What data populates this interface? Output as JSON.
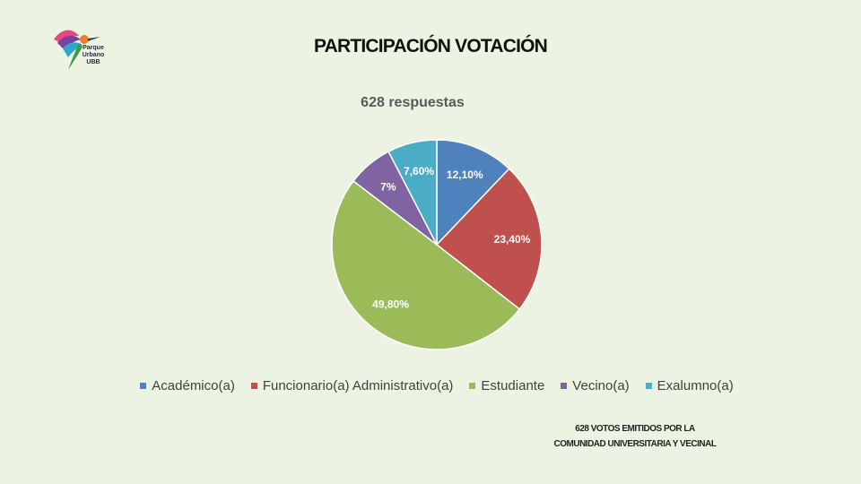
{
  "logo": {
    "line1": "Parque",
    "line2": "Urbano",
    "line3": "UBB"
  },
  "slide_title": "PARTICIPACIÓN VOTACIÓN",
  "footnote": {
    "line1": "628 VOTOS EMITIDOS POR LA",
    "line2": "COMUNIDAD UNIVERSITARIA Y VECINAL"
  },
  "chart_data": {
    "type": "pie",
    "title": "628 respuestas",
    "categories": [
      "Académico(a)",
      "Funcionario(a) Administrativo(a)",
      "Estudiante",
      "Vecino(a)",
      "Exalumno(a)"
    ],
    "values": [
      12.1,
      23.4,
      49.8,
      7.0,
      7.6
    ],
    "labels": [
      "12,10%",
      "23,40%",
      "49,80%",
      "7%",
      "7,60%"
    ],
    "colors": [
      "#4f81bd",
      "#c0504d",
      "#9bbb59",
      "#8064a2",
      "#4bacc6"
    ],
    "legend_position": "bottom"
  }
}
